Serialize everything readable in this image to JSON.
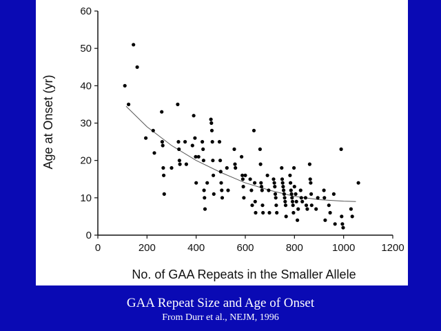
{
  "caption": {
    "title": "GAA Repeat Size and Age of Onset",
    "source": "From Durr et al., NEJM, 1996"
  },
  "colors": {
    "background": "#0a0ab4",
    "panel": "#ffffff",
    "points": "#000000",
    "caption_text": "#ffffff"
  },
  "chart_data": {
    "type": "scatter",
    "title": "",
    "xlabel": "No. of GAA Repeats in the Smaller Allele",
    "ylabel": "Age at Onset (yr)",
    "xlim": [
      0,
      1200
    ],
    "ylim": [
      0,
      60
    ],
    "xticks": [
      0,
      200,
      400,
      600,
      800,
      1000,
      1200
    ],
    "yticks": [
      0,
      10,
      20,
      30,
      40,
      50,
      60
    ],
    "grid": false,
    "legend": "none",
    "points": [
      {
        "x": 110,
        "y": 40
      },
      {
        "x": 125,
        "y": 35
      },
      {
        "x": 145,
        "y": 51
      },
      {
        "x": 160,
        "y": 45
      },
      {
        "x": 195,
        "y": 26
      },
      {
        "x": 225,
        "y": 28
      },
      {
        "x": 230,
        "y": 22
      },
      {
        "x": 260,
        "y": 33
      },
      {
        "x": 262,
        "y": 25
      },
      {
        "x": 264,
        "y": 24
      },
      {
        "x": 266,
        "y": 18
      },
      {
        "x": 268,
        "y": 16
      },
      {
        "x": 270,
        "y": 11
      },
      {
        "x": 300,
        "y": 18
      },
      {
        "x": 325,
        "y": 35
      },
      {
        "x": 328,
        "y": 25
      },
      {
        "x": 330,
        "y": 23
      },
      {
        "x": 332,
        "y": 20
      },
      {
        "x": 334,
        "y": 19
      },
      {
        "x": 355,
        "y": 25
      },
      {
        "x": 360,
        "y": 19
      },
      {
        "x": 385,
        "y": 24
      },
      {
        "x": 390,
        "y": 32
      },
      {
        "x": 395,
        "y": 26
      },
      {
        "x": 398,
        "y": 21
      },
      {
        "x": 400,
        "y": 14
      },
      {
        "x": 410,
        "y": 21
      },
      {
        "x": 425,
        "y": 25
      },
      {
        "x": 428,
        "y": 23
      },
      {
        "x": 430,
        "y": 20
      },
      {
        "x": 432,
        "y": 12
      },
      {
        "x": 434,
        "y": 10
      },
      {
        "x": 436,
        "y": 7
      },
      {
        "x": 445,
        "y": 14
      },
      {
        "x": 460,
        "y": 31
      },
      {
        "x": 462,
        "y": 30
      },
      {
        "x": 464,
        "y": 28
      },
      {
        "x": 466,
        "y": 25
      },
      {
        "x": 468,
        "y": 20
      },
      {
        "x": 470,
        "y": 16
      },
      {
        "x": 472,
        "y": 11
      },
      {
        "x": 495,
        "y": 25
      },
      {
        "x": 498,
        "y": 20
      },
      {
        "x": 500,
        "y": 17
      },
      {
        "x": 502,
        "y": 14
      },
      {
        "x": 504,
        "y": 12
      },
      {
        "x": 506,
        "y": 10
      },
      {
        "x": 525,
        "y": 18
      },
      {
        "x": 530,
        "y": 12
      },
      {
        "x": 555,
        "y": 23
      },
      {
        "x": 558,
        "y": 19
      },
      {
        "x": 560,
        "y": 18
      },
      {
        "x": 585,
        "y": 21
      },
      {
        "x": 588,
        "y": 16
      },
      {
        "x": 590,
        "y": 15
      },
      {
        "x": 592,
        "y": 13
      },
      {
        "x": 594,
        "y": 10
      },
      {
        "x": 600,
        "y": 16
      },
      {
        "x": 620,
        "y": 15
      },
      {
        "x": 625,
        "y": 12
      },
      {
        "x": 628,
        "y": 8
      },
      {
        "x": 635,
        "y": 28
      },
      {
        "x": 638,
        "y": 14
      },
      {
        "x": 640,
        "y": 9
      },
      {
        "x": 642,
        "y": 6
      },
      {
        "x": 660,
        "y": 23
      },
      {
        "x": 662,
        "y": 19
      },
      {
        "x": 664,
        "y": 14
      },
      {
        "x": 666,
        "y": 13
      },
      {
        "x": 668,
        "y": 12
      },
      {
        "x": 670,
        "y": 8
      },
      {
        "x": 672,
        "y": 6
      },
      {
        "x": 690,
        "y": 16
      },
      {
        "x": 695,
        "y": 12
      },
      {
        "x": 698,
        "y": 6
      },
      {
        "x": 715,
        "y": 15
      },
      {
        "x": 718,
        "y": 14
      },
      {
        "x": 720,
        "y": 13
      },
      {
        "x": 722,
        "y": 11
      },
      {
        "x": 724,
        "y": 10
      },
      {
        "x": 726,
        "y": 8
      },
      {
        "x": 728,
        "y": 6
      },
      {
        "x": 748,
        "y": 18
      },
      {
        "x": 750,
        "y": 15
      },
      {
        "x": 752,
        "y": 14
      },
      {
        "x": 754,
        "y": 13
      },
      {
        "x": 756,
        "y": 12
      },
      {
        "x": 758,
        "y": 11
      },
      {
        "x": 760,
        "y": 10
      },
      {
        "x": 762,
        "y": 9
      },
      {
        "x": 764,
        "y": 8
      },
      {
        "x": 766,
        "y": 5
      },
      {
        "x": 782,
        "y": 16
      },
      {
        "x": 784,
        "y": 14
      },
      {
        "x": 786,
        "y": 12
      },
      {
        "x": 788,
        "y": 11
      },
      {
        "x": 790,
        "y": 10
      },
      {
        "x": 792,
        "y": 9
      },
      {
        "x": 794,
        "y": 8
      },
      {
        "x": 796,
        "y": 6
      },
      {
        "x": 798,
        "y": 18
      },
      {
        "x": 800,
        "y": 13
      },
      {
        "x": 805,
        "y": 11
      },
      {
        "x": 808,
        "y": 9
      },
      {
        "x": 812,
        "y": 4
      },
      {
        "x": 815,
        "y": 7
      },
      {
        "x": 825,
        "y": 12
      },
      {
        "x": 828,
        "y": 10
      },
      {
        "x": 832,
        "y": 9
      },
      {
        "x": 845,
        "y": 10
      },
      {
        "x": 848,
        "y": 8
      },
      {
        "x": 852,
        "y": 7
      },
      {
        "x": 862,
        "y": 19
      },
      {
        "x": 864,
        "y": 15
      },
      {
        "x": 866,
        "y": 14
      },
      {
        "x": 868,
        "y": 11
      },
      {
        "x": 870,
        "y": 8
      },
      {
        "x": 888,
        "y": 7
      },
      {
        "x": 895,
        "y": 10
      },
      {
        "x": 920,
        "y": 12
      },
      {
        "x": 922,
        "y": 10
      },
      {
        "x": 925,
        "y": 4
      },
      {
        "x": 940,
        "y": 8
      },
      {
        "x": 945,
        "y": 6
      },
      {
        "x": 960,
        "y": 11
      },
      {
        "x": 965,
        "y": 3
      },
      {
        "x": 990,
        "y": 23
      },
      {
        "x": 992,
        "y": 5
      },
      {
        "x": 995,
        "y": 3
      },
      {
        "x": 998,
        "y": 2
      },
      {
        "x": 1030,
        "y": 7
      },
      {
        "x": 1035,
        "y": 5
      },
      {
        "x": 1060,
        "y": 14
      }
    ],
    "trend_line": [
      {
        "x": 115,
        "y": 34.5
      },
      {
        "x": 200,
        "y": 29
      },
      {
        "x": 300,
        "y": 24
      },
      {
        "x": 400,
        "y": 20
      },
      {
        "x": 500,
        "y": 16.8
      },
      {
        "x": 600,
        "y": 14
      },
      {
        "x": 700,
        "y": 12
      },
      {
        "x": 800,
        "y": 10.4
      },
      {
        "x": 900,
        "y": 9.5
      },
      {
        "x": 1000,
        "y": 9.1
      },
      {
        "x": 1050,
        "y": 9
      }
    ]
  }
}
